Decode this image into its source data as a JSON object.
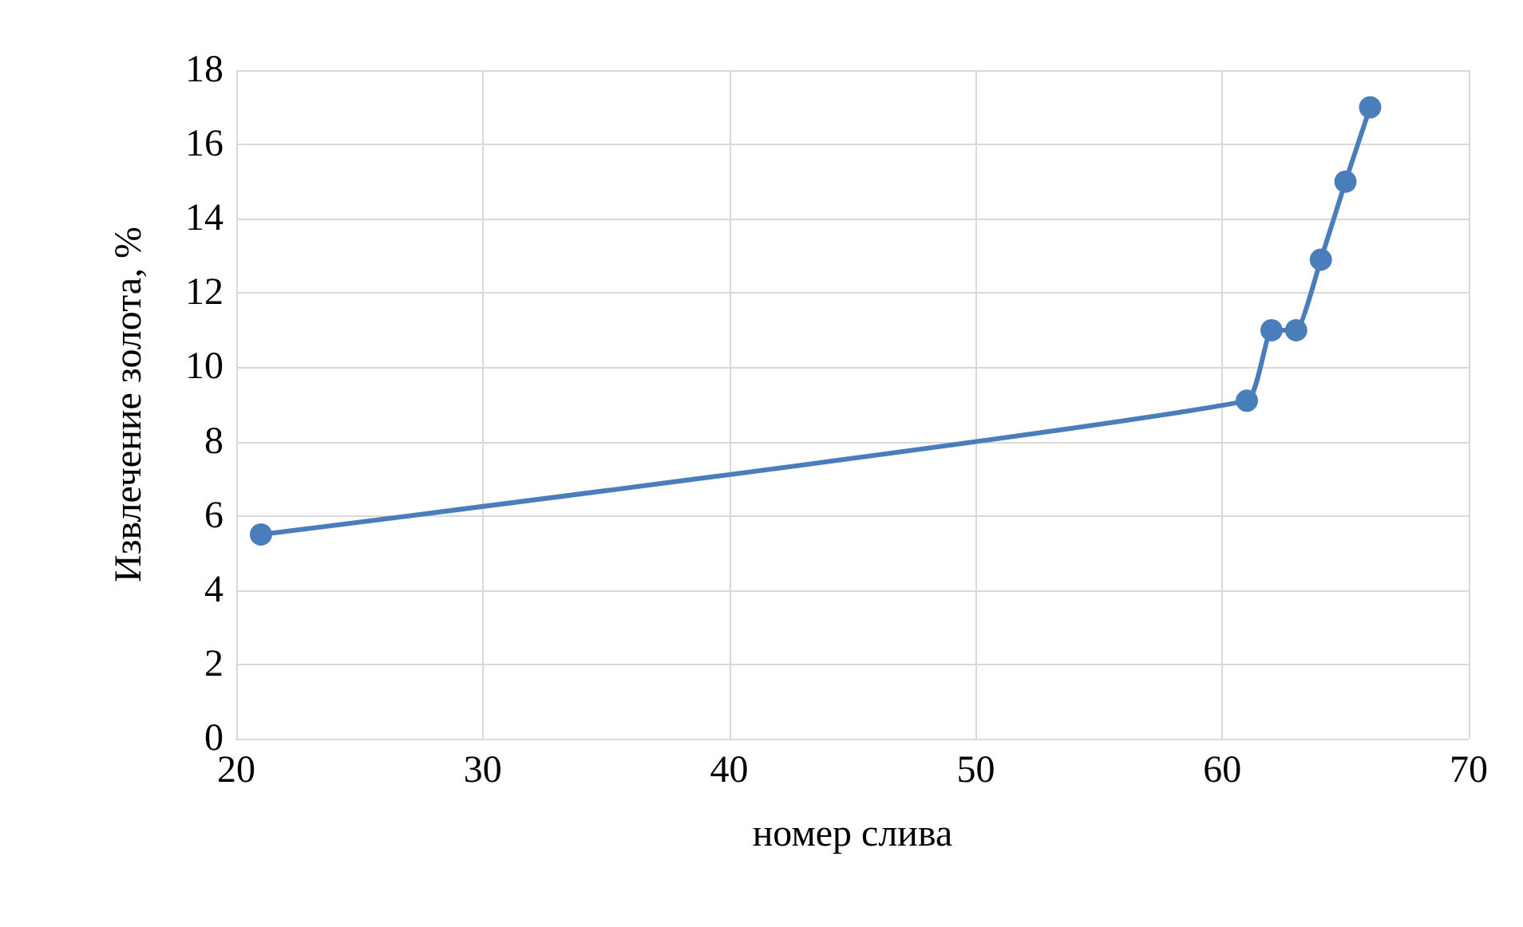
{
  "chart_data": {
    "type": "line",
    "xlabel": "номер слива",
    "ylabel": "Извлечение золота, %",
    "x": [
      21,
      61,
      62,
      63,
      64,
      65,
      66
    ],
    "series": [
      {
        "color": "#4a7ebb",
        "values": [
          5.5,
          9.1,
          11,
          11,
          12.9,
          15,
          17
        ]
      }
    ],
    "xlim": [
      20,
      70
    ],
    "xticks": [
      20,
      30,
      40,
      50,
      60,
      70
    ],
    "ylim": [
      0,
      18
    ],
    "yticks": [
      0,
      2,
      4,
      6,
      8,
      10,
      12,
      14,
      16,
      18
    ],
    "grid": true,
    "marker": "circle",
    "line_style": "solid"
  }
}
